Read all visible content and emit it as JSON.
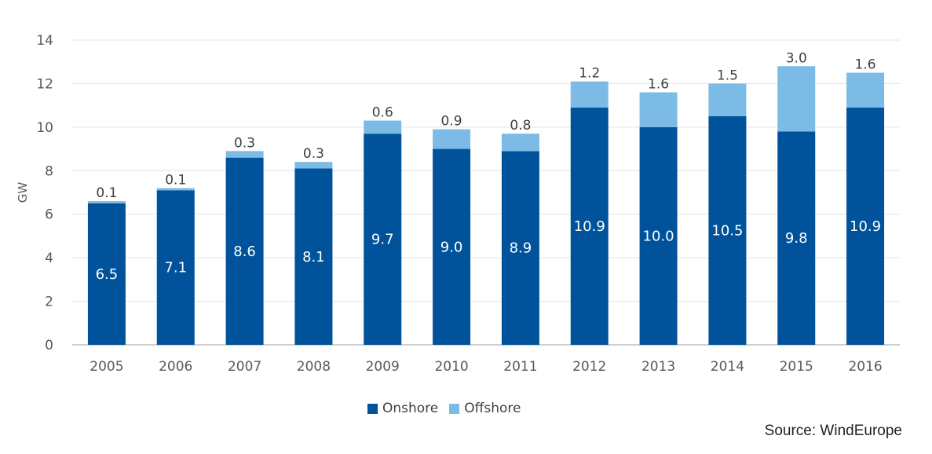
{
  "chart_data": {
    "type": "bar",
    "stacked": true,
    "title": "",
    "xlabel": "",
    "ylabel": "GW",
    "ylim": [
      0,
      14
    ],
    "yticks": [
      0,
      2,
      4,
      6,
      8,
      10,
      12,
      14
    ],
    "grid": true,
    "categories": [
      "2005",
      "2006",
      "2007",
      "2008",
      "2009",
      "2010",
      "2011",
      "2012",
      "2013",
      "2014",
      "2015",
      "2016"
    ],
    "series": [
      {
        "name": "Onshore",
        "color": "#00539b",
        "values": [
          6.5,
          7.1,
          8.6,
          8.1,
          9.7,
          9.0,
          8.9,
          10.9,
          10.0,
          10.5,
          9.8,
          10.9
        ],
        "labels": [
          "6.5",
          "7.1",
          "8.6",
          "8.1",
          "9.7",
          "9.0",
          "8.9",
          "10.9",
          "10.0",
          "10.5",
          "9.8",
          "10.9"
        ]
      },
      {
        "name": "Offshore",
        "color": "#7cbbe6",
        "values": [
          0.1,
          0.1,
          0.3,
          0.3,
          0.6,
          0.9,
          0.8,
          1.2,
          1.6,
          1.5,
          3.0,
          1.6
        ],
        "labels": [
          "0.1",
          "0.1",
          "0.3",
          "0.3",
          "0.6",
          "0.9",
          "0.8",
          "1.2",
          "1.6",
          "1.5",
          "3.0",
          "1.6"
        ]
      }
    ],
    "legend": "bottom-center"
  },
  "source": "Source: WindEurope"
}
